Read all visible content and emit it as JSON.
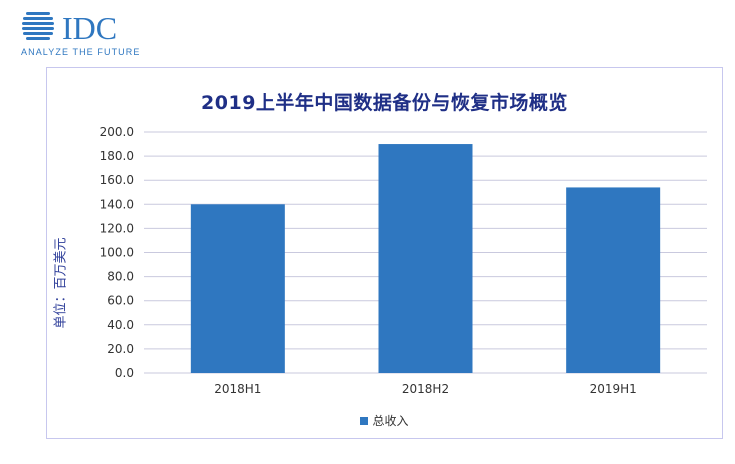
{
  "logo": {
    "wordmark": "IDC",
    "tagline": "ANALYZE THE FUTURE",
    "color": "#2f77c0"
  },
  "chart_data": {
    "type": "bar",
    "title": "2019上半年中国数据备份与恢复市场概览",
    "ylabel": "单位：百万美元",
    "xlabel": "",
    "categories": [
      "2018H1",
      "2018H2",
      "2019H1"
    ],
    "series": [
      {
        "name": "总收入",
        "values": [
          140.0,
          190.0,
          154.0
        ],
        "color": "#2f77c0"
      }
    ],
    "ylim": [
      0,
      200
    ],
    "ytick_step": 20,
    "ytick_labels": [
      "0.0",
      "20.0",
      "40.0",
      "60.0",
      "80.0",
      "100.0",
      "120.0",
      "140.0",
      "160.0",
      "180.0",
      "200.0"
    ],
    "grid": true,
    "legend_position": "bottom"
  }
}
